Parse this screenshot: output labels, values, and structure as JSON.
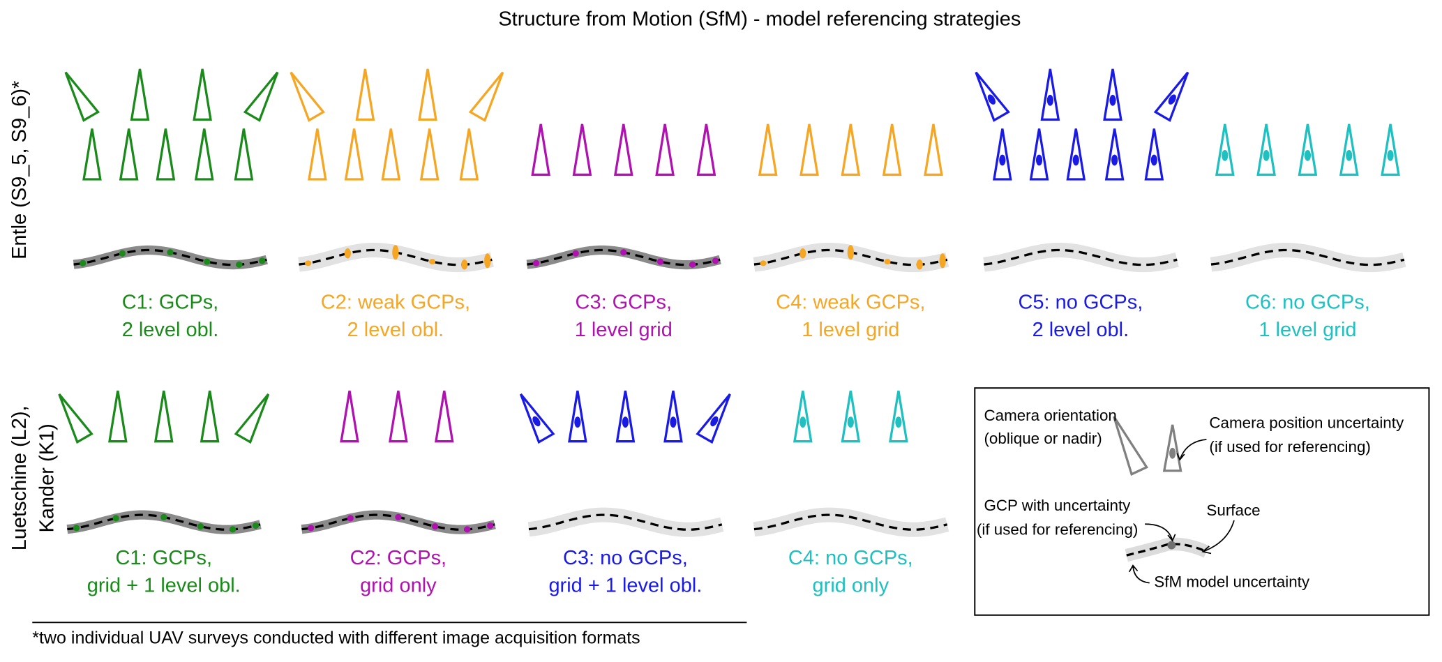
{
  "title": "Structure from Motion (SfM) - model referencing strategies",
  "rows": [
    {
      "label_lines": [
        "Entle (S9_5, S9_6)*"
      ],
      "cases": [
        {
          "lines": [
            "C1: GCPs,",
            "2 level obl."
          ],
          "color": "#1a8a1a"
        },
        {
          "lines": [
            "C2: weak GCPs,",
            "2 level obl."
          ],
          "color": "#f5a623"
        },
        {
          "lines": [
            "C3: GCPs,",
            "1 level grid"
          ],
          "color": "#b012b0"
        },
        {
          "lines": [
            "C4: weak GCPs,",
            "1 level grid"
          ],
          "color": "#f5a623"
        },
        {
          "lines": [
            "C5: no GCPs,",
            "2 level obl."
          ],
          "color": "#1a1ae6"
        },
        {
          "lines": [
            "C6: no GCPs,",
            "1 level grid"
          ],
          "color": "#1ec0c0"
        }
      ]
    },
    {
      "label_lines": [
        "Luetschine (L2),",
        "Kander (K1)"
      ],
      "cases": [
        {
          "lines": [
            "C1: GCPs,",
            "grid + 1 level obl."
          ],
          "color": "#1a8a1a"
        },
        {
          "lines": [
            "C2: GCPs,",
            "grid only"
          ],
          "color": "#b012b0"
        },
        {
          "lines": [
            "C3: no GCPs,",
            "grid + 1 level obl."
          ],
          "color": "#1a1ae6"
        },
        {
          "lines": [
            "C4: no GCPs,",
            "grid only"
          ],
          "color": "#1ec0c0"
        }
      ]
    }
  ],
  "legend": {
    "camera_orientation": [
      "Camera orientation",
      "(oblique or nadir)"
    ],
    "camera_position": [
      "Camera position uncertainty",
      "(if used for referencing)"
    ],
    "gcp": [
      "GCP with uncertainty",
      "(if used for referencing)"
    ],
    "surface": "Surface",
    "sfm_uncertainty": "SfM model uncertainty"
  },
  "footnote": "*two individual UAV surveys conducted with different image acquisition formats"
}
